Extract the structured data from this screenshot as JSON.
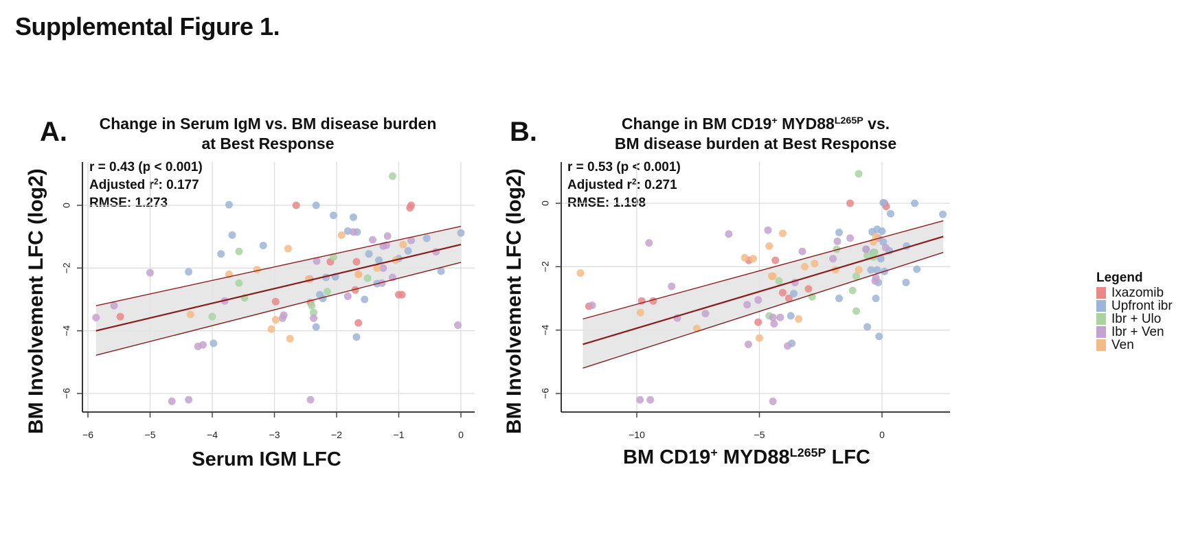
{
  "figure_title": "Supplemental Figure 1.",
  "legend": {
    "title": "Legend",
    "items": [
      {
        "key": "ixa",
        "label": "Ixazomib",
        "color": "#e8888a"
      },
      {
        "key": "upf",
        "label": "Upfront ibr",
        "color": "#9db5d8"
      },
      {
        "key": "ulo",
        "label": "Ibr + Ulo",
        "color": "#a9d3a1"
      },
      {
        "key": "ven2",
        "label": "Ibr + Ven",
        "color": "#c3a2cf"
      },
      {
        "key": "ven",
        "label": "Ven",
        "color": "#f4bb86"
      }
    ]
  },
  "fit_style": {
    "line_color": "#8b1a1a",
    "band_color": "#e4e4e4"
  },
  "panels": [
    {
      "letter": "A.",
      "title_line1": "Change in Serum IgM vs. BM disease burden",
      "title_line2": "at Best Response",
      "stats": {
        "r_line": "r = 0.43 (p < 0.001)",
        "adj_prefix": "Adjusted r",
        "adj_sup": "2",
        "adj_value": ": 0.177",
        "rmse_line": "RMSE: 1.273"
      },
      "ylabel": "BM Involvement LFC (log2)",
      "xlabel_main": "Serum IGM LFC",
      "xlabel_sup": "",
      "xlabel_tail": ""
    },
    {
      "letter": "B.",
      "title_line1_pre": "Change in BM CD19",
      "title_line1_sup1": "+",
      "title_line1_mid": " MYD88",
      "title_line1_sup2": "L265P",
      "title_line1_post": " vs.",
      "title_line2": "BM disease burden at Best Response",
      "stats": {
        "r_line": "r = 0.53 (p < 0.001)",
        "adj_prefix": "Adjusted r",
        "adj_sup": "2",
        "adj_value": ": 0.271",
        "rmse_line": "RMSE: 1.198"
      },
      "ylabel": "BM Involvement LFC (log2)",
      "xlabel_pre": "BM CD19",
      "xlabel_sup1": "+",
      "xlabel_mid": " MYD88",
      "xlabel_sup2": "L265P",
      "xlabel_post": " LFC"
    }
  ],
  "chart_data": [
    {
      "type": "scatter",
      "title": "Change in Serum IgM vs. BM disease burden at Best Response",
      "xlabel": "Serum IGM LFC",
      "ylabel": "BM Involvement LFC (log2)",
      "xlim": [
        -6.1,
        0.2
      ],
      "ylim": [
        -6.6,
        1.3
      ],
      "xticks": [
        -6,
        -5,
        -4,
        -3,
        -2,
        -1,
        0
      ],
      "xtick_labels": [
        "−6",
        "−5",
        "−4",
        "−3",
        "−2",
        "−1",
        "0"
      ],
      "yticks": [
        0,
        -2,
        -4,
        -6
      ],
      "ytick_labels": [
        "0",
        "−2",
        "−4",
        "−6"
      ],
      "grid": true,
      "legend_position": "right",
      "annotations": [
        "r = 0.43 (p < 0.001)",
        "Adjusted r2: 0.177",
        "RMSE: 1.273"
      ],
      "fit": {
        "x_range": [
          -5.87,
          0.0
        ],
        "line": [
          -4.0,
          -1.25
        ],
        "upper": [
          -3.2,
          -0.67
        ],
        "lower": [
          -4.78,
          -1.82
        ]
      },
      "series": [
        {
          "name": "Ixazomib",
          "points": [
            [
              -5.48,
              -3.55
            ],
            [
              -2.65,
              0.0
            ],
            [
              -0.8,
              0.0
            ],
            [
              -0.82,
              -0.08
            ],
            [
              -2.42,
              -3.1
            ],
            [
              -2.98,
              -3.07
            ],
            [
              -2.1,
              -1.8
            ],
            [
              -1.68,
              -1.8
            ],
            [
              -1.7,
              -2.7
            ],
            [
              -1.65,
              -3.75
            ],
            [
              -0.95,
              -2.85
            ],
            [
              -1.0,
              -2.85
            ]
          ]
        },
        {
          "name": "Upfront ibr",
          "points": [
            [
              -3.73,
              0.02
            ],
            [
              -2.33,
              0.0
            ],
            [
              -3.68,
              -0.95
            ],
            [
              -3.86,
              -1.55
            ],
            [
              -3.18,
              -1.28
            ],
            [
              -2.05,
              -0.32
            ],
            [
              -1.73,
              -0.38
            ],
            [
              -1.82,
              -0.82
            ],
            [
              -1.67,
              -0.85
            ],
            [
              -2.27,
              -2.85
            ],
            [
              -2.22,
              -2.97
            ],
            [
              -2.33,
              -3.88
            ],
            [
              -3.98,
              -4.4
            ],
            [
              -4.38,
              -2.12
            ],
            [
              -2.17,
              -2.3
            ],
            [
              -1.48,
              -1.55
            ],
            [
              -1.32,
              -1.75
            ],
            [
              -1.35,
              -2.5
            ],
            [
              -1.55,
              -3.0
            ],
            [
              -1.68,
              -4.2
            ],
            [
              -1.0,
              -1.7
            ],
            [
              -0.85,
              -1.45
            ],
            [
              -0.55,
              -1.05
            ],
            [
              -0.32,
              -2.1
            ],
            [
              0.0,
              -0.88
            ],
            [
              -2.02,
              -2.28
            ]
          ]
        },
        {
          "name": "Ibr + Ulo",
          "points": [
            [
              -1.1,
              0.93
            ],
            [
              -3.57,
              -1.47
            ],
            [
              -4.0,
              -3.55
            ],
            [
              -3.57,
              -2.48
            ],
            [
              -2.05,
              -1.65
            ],
            [
              -2.15,
              -2.75
            ],
            [
              -1.5,
              -2.32
            ],
            [
              -2.37,
              -3.42
            ],
            [
              -3.48,
              -2.95
            ],
            [
              -2.4,
              -3.2
            ]
          ]
        },
        {
          "name": "Ibr + Ven",
          "points": [
            [
              -5.87,
              -3.58
            ],
            [
              -5.58,
              -3.2
            ],
            [
              -5.0,
              -2.15
            ],
            [
              -3.8,
              -3.05
            ],
            [
              -4.65,
              -6.25
            ],
            [
              -4.38,
              -6.2
            ],
            [
              -4.23,
              -4.5
            ],
            [
              -4.15,
              -4.45
            ],
            [
              -2.42,
              -6.2
            ],
            [
              -2.85,
              -3.5
            ],
            [
              -2.87,
              -3.6
            ],
            [
              -2.37,
              -3.6
            ],
            [
              -2.32,
              -1.78
            ],
            [
              -1.73,
              -0.85
            ],
            [
              -1.42,
              -1.1
            ],
            [
              -1.25,
              -1.3
            ],
            [
              -1.18,
              -0.98
            ],
            [
              -1.25,
              -2.0
            ],
            [
              -1.2,
              -1.27
            ],
            [
              -1.27,
              -2.48
            ],
            [
              -1.1,
              -2.3
            ],
            [
              -0.8,
              -1.12
            ],
            [
              -0.4,
              -1.48
            ],
            [
              -0.05,
              -3.82
            ],
            [
              -1.82,
              -2.9
            ],
            [
              -2.43,
              -2.35
            ]
          ]
        },
        {
          "name": "Ven",
          "points": [
            [
              -3.28,
              -2.05
            ],
            [
              -4.35,
              -3.48
            ],
            [
              -3.73,
              -2.2
            ],
            [
              -3.05,
              -3.95
            ],
            [
              -2.98,
              -3.65
            ],
            [
              -2.75,
              -4.25
            ],
            [
              -2.78,
              -1.38
            ],
            [
              -1.92,
              -0.95
            ],
            [
              -1.65,
              -2.2
            ],
            [
              -1.65,
              -2.2
            ],
            [
              -1.35,
              -2.0
            ],
            [
              -1.05,
              -1.75
            ],
            [
              -0.93,
              -1.25
            ],
            [
              -2.45,
              -2.35
            ]
          ]
        }
      ]
    },
    {
      "type": "scatter",
      "title": "Change in BM CD19+ MYD88L265P vs. BM disease burden at Best Response",
      "xlabel": "BM CD19+ MYD88L265P LFC",
      "ylabel": "BM Involvement LFC (log2)",
      "xlim": [
        -12.9,
        3.7
      ],
      "ylim": [
        -6.6,
        1.3
      ],
      "xticks": [
        -10,
        -5,
        0
      ],
      "xtick_labels": [
        "−10",
        "−5",
        "0"
      ],
      "yticks": [
        0,
        -2,
        -4,
        -6
      ],
      "ytick_labels": [
        "0",
        "−2",
        "−4",
        "−6"
      ],
      "grid": true,
      "legend_position": "right",
      "annotations": [
        "r = 0.53 (p < 0.001)",
        "Adjusted r2: 0.271",
        "RMSE: 1.198"
      ],
      "fit": {
        "x_range": [
          -12.2,
          2.5
        ],
        "line": [
          -4.45,
          -1.05
        ],
        "upper": [
          -3.65,
          -0.55
        ],
        "lower": [
          -5.2,
          -1.55
        ]
      },
      "series": [
        {
          "name": "Ixazomib",
          "points": [
            [
              -9.8,
              -3.08
            ],
            [
              -9.33,
              -3.08
            ],
            [
              -5.43,
              -1.8
            ],
            [
              -4.35,
              -1.8
            ],
            [
              -4.05,
              -2.82
            ],
            [
              -1.3,
              0.0
            ],
            [
              0.1,
              0.0
            ],
            [
              0.17,
              -0.1
            ],
            [
              -5.05,
              -3.75
            ],
            [
              -3.8,
              -3.0
            ],
            [
              -3.0,
              -2.7
            ],
            [
              -11.95,
              -3.25
            ]
          ]
        },
        {
          "name": "Upfront ibr",
          "points": [
            [
              -3.68,
              -4.42
            ],
            [
              -3.6,
              -2.85
            ],
            [
              0.05,
              0.02
            ],
            [
              1.33,
              0.0
            ],
            [
              2.48,
              -0.35
            ],
            [
              0.35,
              -0.33
            ],
            [
              -0.4,
              -0.9
            ],
            [
              -0.2,
              -0.82
            ],
            [
              0.0,
              -0.88
            ],
            [
              0.05,
              -1.22
            ],
            [
              -0.65,
              -1.45
            ],
            [
              -0.35,
              -1.55
            ],
            [
              -0.05,
              -1.75
            ],
            [
              0.3,
              -1.5
            ],
            [
              1.0,
              -1.35
            ],
            [
              -0.45,
              -2.1
            ],
            [
              -0.2,
              -2.1
            ],
            [
              0.1,
              -2.15
            ],
            [
              -0.15,
              -2.5
            ],
            [
              -0.25,
              -3.0
            ],
            [
              -0.12,
              -4.2
            ],
            [
              0.98,
              -2.5
            ],
            [
              1.42,
              -2.08
            ],
            [
              -0.6,
              -3.9
            ],
            [
              -1.75,
              -3.0
            ],
            [
              -1.75,
              -0.92
            ],
            [
              -3.72,
              -3.55
            ]
          ]
        },
        {
          "name": "Ibr + Ulo",
          "points": [
            [
              -0.95,
              0.93
            ],
            [
              -4.2,
              -2.45
            ],
            [
              -4.6,
              -3.55
            ],
            [
              -2.85,
              -2.95
            ],
            [
              -1.05,
              -2.3
            ],
            [
              -1.2,
              -2.75
            ],
            [
              -1.05,
              -3.4
            ],
            [
              -1.85,
              -1.45
            ],
            [
              -0.6,
              -1.65
            ],
            [
              -0.3,
              -1.55
            ],
            [
              -0.35,
              -1.7
            ]
          ]
        },
        {
          "name": "Ibr + Ven",
          "points": [
            [
              -9.5,
              -1.25
            ],
            [
              -9.87,
              -6.2
            ],
            [
              -9.45,
              -6.2
            ],
            [
              -8.58,
              -2.62
            ],
            [
              -8.35,
              -3.62
            ],
            [
              -7.2,
              -3.48
            ],
            [
              -6.25,
              -0.97
            ],
            [
              -4.65,
              -0.85
            ],
            [
              -5.5,
              -3.2
            ],
            [
              -5.05,
              -3.05
            ],
            [
              -4.45,
              -3.6
            ],
            [
              -4.15,
              -3.6
            ],
            [
              -4.4,
              -3.8
            ],
            [
              -3.55,
              -2.5
            ],
            [
              -3.85,
              -4.5
            ],
            [
              -5.45,
              -4.45
            ],
            [
              -4.45,
              -6.25
            ],
            [
              -3.25,
              -1.52
            ],
            [
              -1.82,
              -1.2
            ],
            [
              -1.3,
              -1.1
            ],
            [
              -0.65,
              -1.45
            ],
            [
              -0.15,
              -1.1
            ],
            [
              0.15,
              -1.4
            ],
            [
              -0.25,
              -2.35
            ],
            [
              -0.28,
              -2.45
            ],
            [
              -2.0,
              -1.75
            ],
            [
              -11.82,
              -3.22
            ]
          ]
        },
        {
          "name": "Ven",
          "points": [
            [
              -12.3,
              -2.2
            ],
            [
              -9.85,
              -3.45
            ],
            [
              -7.55,
              -3.95
            ],
            [
              -5.25,
              -1.75
            ],
            [
              -4.05,
              -0.95
            ],
            [
              -4.6,
              -1.35
            ],
            [
              -4.5,
              -2.3
            ],
            [
              -5.0,
              -4.25
            ],
            [
              -3.15,
              -2.0
            ],
            [
              -2.75,
              -1.9
            ],
            [
              -4.45,
              -2.3
            ],
            [
              -3.4,
              -3.65
            ],
            [
              -5.6,
              -1.72
            ],
            [
              -0.35,
              -1.22
            ],
            [
              -0.25,
              -1.05
            ],
            [
              -0.95,
              -2.1
            ],
            [
              -1.9,
              -2.1
            ]
          ]
        }
      ]
    }
  ]
}
